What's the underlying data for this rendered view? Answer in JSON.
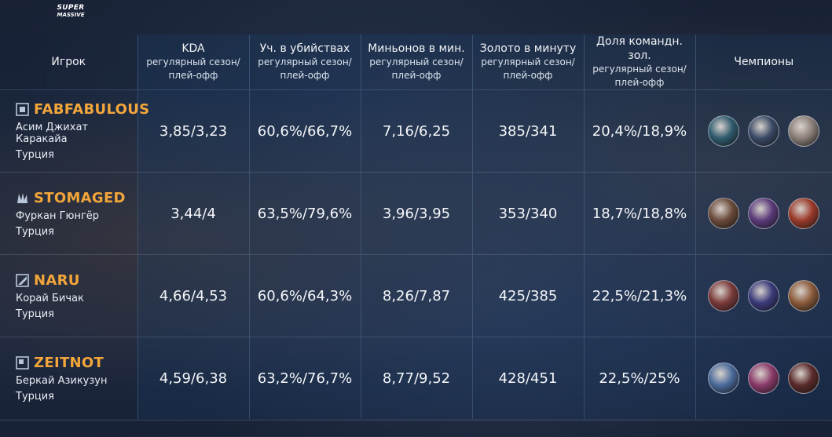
{
  "logo": {
    "top": "SUPER",
    "bottom": "MASSIVE"
  },
  "header": {
    "player": "Игрок",
    "champions": "Чемпионы",
    "columns": [
      {
        "title": "KDA",
        "sub1": "регулярный сезон/",
        "sub2": "плей-офф"
      },
      {
        "title": "Уч. в убийствах",
        "sub1": "регулярный сезон/",
        "sub2": "плей-офф"
      },
      {
        "title": "Миньонов в мин.",
        "sub1": "регулярный сезон/",
        "sub2": "плей-офф"
      },
      {
        "title": "Золото в минуту",
        "sub1": "регулярный сезон/",
        "sub2": "плей-офф"
      },
      {
        "title": "Доля командн. зол.",
        "sub1": "регулярный сезон/",
        "sub2": "плей-офф"
      }
    ]
  },
  "players": [
    {
      "tag": "FABFABULOUS",
      "name": "Асим Джихат Каракайа",
      "country": "Турция",
      "team_icon": "support-role-icon",
      "kda": "3,85/3,23",
      "kp": "60,6%/66,7%",
      "cs": "7,16/6,25",
      "gold": "385/341",
      "share": "20,4%/18,9%",
      "champions": [
        {
          "icon": "champion-1-icon",
          "color": "#2f5a6e"
        },
        {
          "icon": "champion-2-icon",
          "color": "#3a4a66"
        },
        {
          "icon": "champion-3-icon",
          "color": "#8b7f78"
        }
      ]
    },
    {
      "tag": "STOMAGED",
      "name": "Фуркан Гюнгёр",
      "country": "Турция",
      "team_icon": "jungle-role-icon",
      "kda": "3,44/4",
      "kp": "63,5%/79,6%",
      "cs": "3,96/3,95",
      "gold": "353/340",
      "share": "18,7%/18,8%",
      "champions": [
        {
          "icon": "champion-4-icon",
          "color": "#6a4a3a"
        },
        {
          "icon": "champion-5-icon",
          "color": "#5a3a7a"
        },
        {
          "icon": "champion-6-icon",
          "color": "#9a3a2a"
        }
      ]
    },
    {
      "tag": "NARU",
      "name": "Корай Бичак",
      "country": "Турция",
      "team_icon": "mid-role-icon",
      "kda": "4,66/4,53",
      "kp": "60,6%/64,3%",
      "cs": "8,26/7,87",
      "gold": "425/385",
      "share": "22,5%/21,3%",
      "champions": [
        {
          "icon": "champion-7-icon",
          "color": "#7a3a3a"
        },
        {
          "icon": "champion-8-icon",
          "color": "#3a3a7a"
        },
        {
          "icon": "champion-9-icon",
          "color": "#8a5a3a"
        }
      ]
    },
    {
      "tag": "ZEITNOT",
      "name": "Беркай Азикузун",
      "country": "Турция",
      "team_icon": "adc-role-icon",
      "kda": "4,59/6,38",
      "kp": "63,2%/76,7%",
      "cs": "8,77/9,52",
      "gold": "428/451",
      "share": "22,5%/25%",
      "champions": [
        {
          "icon": "champion-10-icon",
          "color": "#4a6a9a"
        },
        {
          "icon": "champion-11-icon",
          "color": "#8a3a6a"
        },
        {
          "icon": "champion-12-icon",
          "color": "#5a2a2a"
        }
      ]
    }
  ]
}
